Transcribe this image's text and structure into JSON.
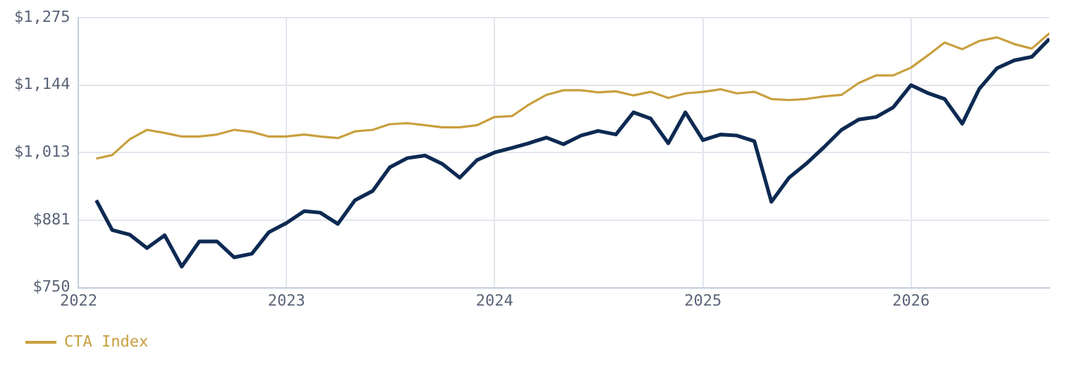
{
  "chart_data": {
    "type": "line",
    "x": [
      "2022-02",
      "2022-03",
      "2022-04",
      "2022-05",
      "2022-06",
      "2022-07",
      "2022-08",
      "2022-09",
      "2022-10",
      "2022-11",
      "2022-12",
      "2023-01",
      "2023-02",
      "2023-03",
      "2023-04",
      "2023-05",
      "2023-06",
      "2023-07",
      "2023-08",
      "2023-09",
      "2023-10",
      "2023-11",
      "2023-12",
      "2024-01",
      "2024-02",
      "2024-03",
      "2024-04",
      "2024-05",
      "2024-06",
      "2024-07",
      "2024-08",
      "2024-09",
      "2024-10",
      "2024-11",
      "2024-12",
      "2025-01",
      "2025-02",
      "2025-03",
      "2025-04",
      "2025-05",
      "2025-06",
      "2025-07",
      "2025-08",
      "2025-09",
      "2025-10",
      "2025-11",
      "2025-12",
      "2026-01",
      "2026-02",
      "2026-03",
      "2026-04",
      "2026-05",
      "2026-06",
      "2026-07",
      "2026-08",
      "2026-09"
    ],
    "series": [
      {
        "color": "#0d2a52",
        "values": [
          920,
          862,
          853,
          827,
          852,
          791,
          840,
          840,
          809,
          816,
          858,
          876,
          899,
          896,
          874,
          920,
          938,
          984,
          1002,
          1007,
          991,
          964,
          998,
          1013,
          1022,
          1031,
          1042,
          1029,
          1046,
          1055,
          1048,
          1091,
          1079,
          1031,
          1091,
          1037,
          1048,
          1046,
          1035,
          917,
          964,
          991,
          1023,
          1057,
          1077,
          1082,
          1101,
          1144,
          1128,
          1117,
          1069,
          1137,
          1177,
          1192,
          1199,
          1234
        ]
      },
      {
        "name": "CTA Index",
        "color": "#c9a03f",
        "values": [
          1001,
          1008,
          1039,
          1057,
          1051,
          1044,
          1044,
          1048,
          1057,
          1053,
          1044,
          1044,
          1048,
          1044,
          1041,
          1054,
          1057,
          1068,
          1070,
          1066,
          1062,
          1062,
          1066,
          1082,
          1084,
          1106,
          1125,
          1134,
          1134,
          1130,
          1132,
          1124,
          1131,
          1119,
          1128,
          1131,
          1136,
          1128,
          1131,
          1117,
          1115,
          1117,
          1122,
          1125,
          1148,
          1163,
          1163,
          1178,
          1203,
          1227,
          1214,
          1230,
          1237,
          1224,
          1215,
          1245
        ]
      }
    ],
    "xlim": [
      "2022-01",
      "2026-09"
    ],
    "xticks": [
      "2022",
      "2023",
      "2024",
      "2025",
      "2026"
    ],
    "ylim": [
      750,
      1275
    ],
    "yticks": [
      {
        "value": 750,
        "label": "$750"
      },
      {
        "value": 881,
        "label": "$881"
      },
      {
        "value": 1013,
        "label": "$1,013"
      },
      {
        "value": 1144,
        "label": "$1,144"
      },
      {
        "value": 1275,
        "label": "$1,275"
      }
    ],
    "grid": true,
    "legend": "bottom"
  }
}
